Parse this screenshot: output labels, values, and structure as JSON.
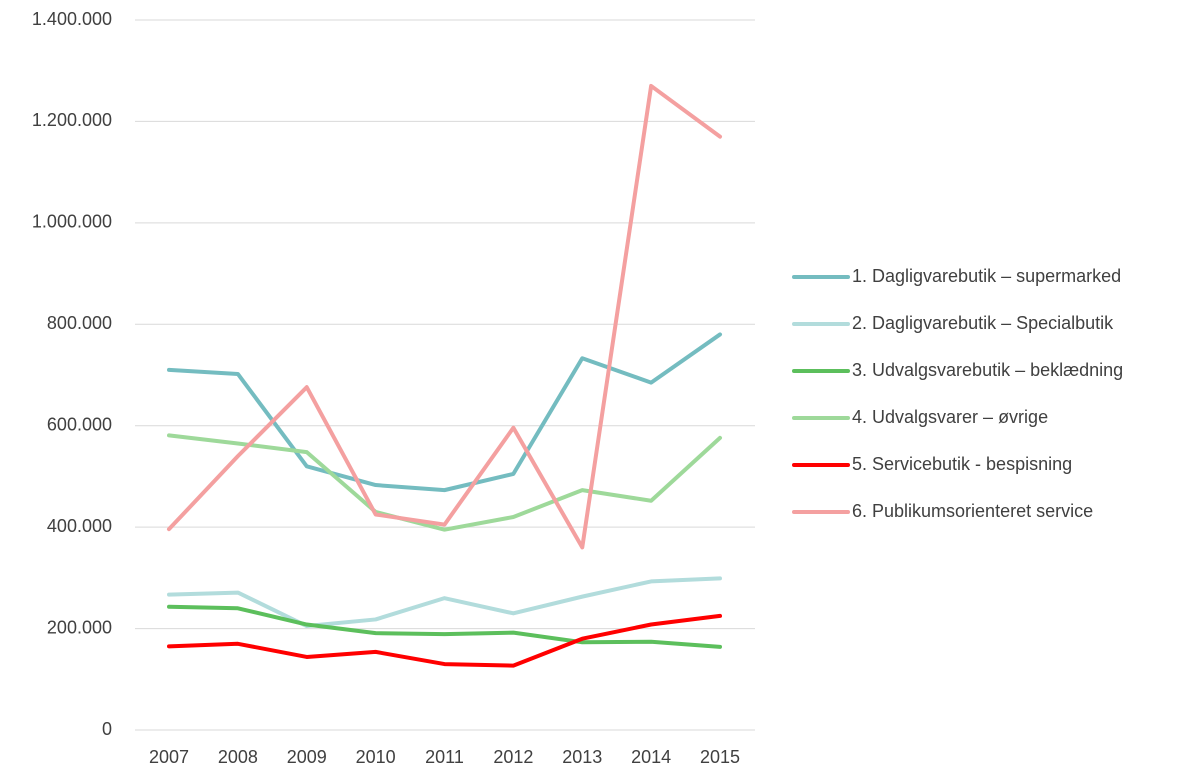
{
  "chart_data": {
    "type": "line",
    "x": [
      2007,
      2008,
      2009,
      2010,
      2011,
      2012,
      2013,
      2014,
      2015
    ],
    "xlim": [
      2007,
      2015
    ],
    "xticks": [
      2007,
      2008,
      2009,
      2010,
      2011,
      2012,
      2013,
      2014,
      2015
    ],
    "ylim": [
      0,
      1400000
    ],
    "yticks": [
      0,
      {
        "value": 200000,
        "label": "200.000"
      },
      {
        "value": 400000,
        "label": "400.000"
      },
      {
        "value": 600000,
        "label": "600.000"
      },
      {
        "value": 800000,
        "label": "800.000"
      },
      {
        "value": 1000000,
        "label": "1.000.000"
      },
      {
        "value": 1200000,
        "label": "1.200.000"
      },
      {
        "value": 1400000,
        "label": "1.400.000"
      }
    ],
    "grid": true,
    "legend": "right",
    "series": [
      {
        "name": "1. Dagligvarebutik – supermarked",
        "color": "#74bcc0",
        "values": [
          710000,
          702000,
          520000,
          483000,
          473000,
          505000,
          733000,
          685000,
          780000
        ]
      },
      {
        "name": "2. Dagligvarebutik – Specialbutik",
        "color": "#b2dcdc",
        "values": [
          267000,
          271000,
          205000,
          218000,
          260000,
          230000,
          263000,
          293000,
          299000
        ]
      },
      {
        "name": "3. Udvalgsvarebutik – beklædning",
        "color": "#5cbf5c",
        "values": [
          243000,
          240000,
          208000,
          191000,
          189000,
          192000,
          173000,
          174000,
          164000
        ]
      },
      {
        "name": "4. Udvalgsvarer – øvrige",
        "color": "#9ed99a",
        "values": [
          581000,
          565000,
          548000,
          430000,
          395000,
          420000,
          473000,
          452000,
          576000
        ]
      },
      {
        "name": "5. Servicebutik - bespisning",
        "color": "#ff0000",
        "values": [
          165000,
          170000,
          144000,
          154000,
          130000,
          127000,
          180000,
          208000,
          225000
        ]
      },
      {
        "name": "6. Publikumsorienteret service",
        "color": "#f4a0a0",
        "values": [
          396000,
          540000,
          676000,
          425000,
          405000,
          596000,
          360000,
          1270000,
          1170000
        ]
      }
    ]
  }
}
